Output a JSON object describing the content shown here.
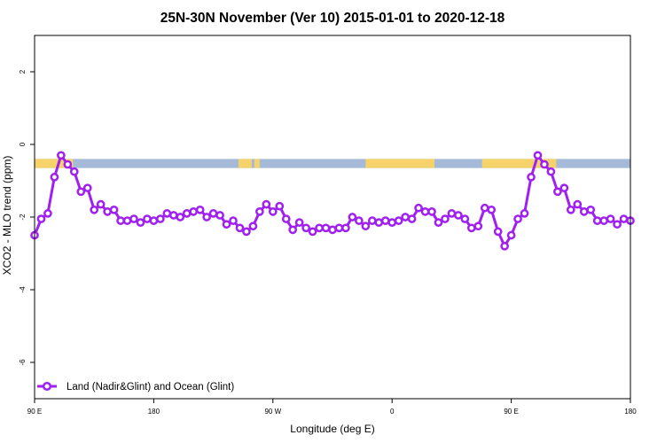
{
  "chart_data": {
    "type": "line",
    "title": "25N-30N November (Ver 10)   2015-01-01 to 2020-12-18",
    "xlabel": "Longitude (deg E)",
    "ylabel": "XCO2 - MLO trend (ppm)",
    "xlim": [
      90,
      540
    ],
    "ylim": [
      -7,
      3
    ],
    "x_ticks": [
      {
        "value": 90,
        "label": "90 E"
      },
      {
        "value": 180,
        "label": "180"
      },
      {
        "value": 270,
        "label": "90 W"
      },
      {
        "value": 360,
        "label": "0"
      },
      {
        "value": 450,
        "label": "90 E"
      },
      {
        "value": 540,
        "label": "180"
      }
    ],
    "y_ticks": [
      {
        "value": 2,
        "label": "2"
      },
      {
        "value": 0,
        "label": "0"
      },
      {
        "value": -2,
        "label": "-2"
      },
      {
        "value": -4,
        "label": "-4"
      },
      {
        "value": -6,
        "label": "-6"
      }
    ],
    "grid": false,
    "legend_position": "bottom-left",
    "land_ocean_strip": {
      "y_range": [
        -0.65,
        -0.4
      ],
      "land_color": "#f5d36a",
      "ocean_color": "#a5b9d8",
      "land_segments": [
        [
          90,
          119
        ],
        [
          244,
          254
        ],
        [
          256,
          260
        ],
        [
          340,
          392
        ],
        [
          428,
          484
        ]
      ]
    },
    "series": [
      {
        "name": "Land (Nadir&Glint) and Ocean (Glint)",
        "color": "#a020f0",
        "x": [
          90,
          95,
          100,
          105,
          110,
          115,
          120,
          125,
          130,
          135,
          140,
          145,
          150,
          155,
          160,
          165,
          170,
          175,
          180,
          185,
          190,
          195,
          200,
          205,
          210,
          215,
          220,
          225,
          230,
          235,
          240,
          245,
          250,
          255,
          260,
          265,
          270,
          275,
          280,
          285,
          290,
          295,
          300,
          305,
          310,
          315,
          320,
          325,
          330,
          335,
          340,
          345,
          350,
          355,
          360,
          365,
          370,
          375,
          380,
          385,
          390,
          395,
          400,
          405,
          410,
          415,
          420,
          425,
          430,
          435,
          440,
          445,
          450,
          455,
          460,
          465,
          470,
          475,
          480,
          485,
          490,
          495,
          500,
          505,
          510,
          515,
          520,
          525,
          530,
          535,
          540
        ],
        "y": [
          -2.5,
          -2.05,
          -1.9,
          -0.9,
          -0.3,
          -0.55,
          -0.75,
          -1.3,
          -1.2,
          -1.8,
          -1.65,
          -1.85,
          -1.8,
          -2.1,
          -2.1,
          -2.05,
          -2.15,
          -2.05,
          -2.1,
          -2.05,
          -1.9,
          -1.95,
          -2.0,
          -1.9,
          -1.85,
          -1.8,
          -2.0,
          -1.9,
          -1.95,
          -2.2,
          -2.1,
          -2.3,
          -2.4,
          -2.25,
          -1.85,
          -1.65,
          -1.85,
          -1.7,
          -2.05,
          -2.35,
          -2.15,
          -2.3,
          -2.4,
          -2.3,
          -2.3,
          -2.35,
          -2.3,
          -2.3,
          -2.0,
          -2.1,
          -2.25,
          -2.1,
          -2.15,
          -2.1,
          -2.15,
          -2.1,
          -2.0,
          -2.05,
          -1.75,
          -1.85,
          -1.85,
          -2.15,
          -2.05,
          -1.9,
          -1.95,
          -2.05,
          -2.3,
          -2.25,
          -1.75,
          -1.8,
          -2.4,
          -2.8,
          -2.5,
          -2.05,
          -1.9,
          -0.9,
          -0.3,
          -0.55,
          -0.75,
          -1.3,
          -1.2,
          -1.8,
          -1.65,
          -1.85,
          -1.8,
          -2.1,
          -2.1,
          -2.05,
          -2.2,
          -2.05,
          -2.1
        ]
      }
    ]
  }
}
